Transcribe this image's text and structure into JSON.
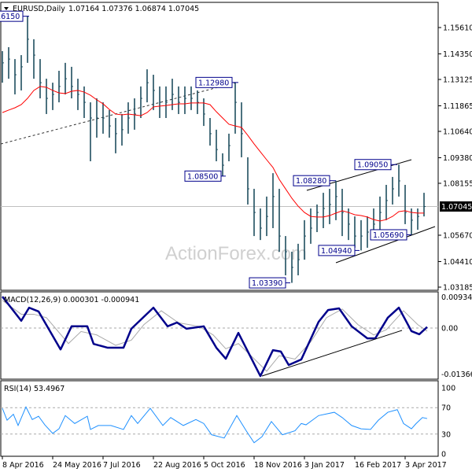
{
  "header": {
    "symbol_timeframe": "EURUSD,Daily",
    "ohlc": "1.07164 1.07376 1.06874 1.07045"
  },
  "watermark": "ActionForex.com",
  "colors": {
    "bars": "#1f4e5f",
    "ma": "#ff0000",
    "macd": "#00008b",
    "signal": "#a9a9a9",
    "rsi": "#1e90ff",
    "label_border": "#00008b",
    "label_text": "#00008b"
  },
  "chart_data": [
    {
      "type": "ohlc-bar",
      "title": "EURUSD,Daily",
      "x_unit": "trading days from 8 Apr 2016 (one sample every 4 days)",
      "x_tick_labels": [
        {
          "day": 0,
          "label": "8 Apr 2016"
        },
        {
          "day": 32,
          "label": "24 May 2016"
        },
        {
          "day": 64,
          "label": "7 Jul 2016"
        },
        {
          "day": 96,
          "label": "22 Aug 2016"
        },
        {
          "day": 128,
          "label": "5 Oct 2016"
        },
        {
          "day": 160,
          "label": "18 Nov 2016"
        },
        {
          "day": 192,
          "label": "3 Jan 2017"
        },
        {
          "day": 224,
          "label": "16 Feb 2017"
        },
        {
          "day": 256,
          "label": "3 Apr 2017"
        }
      ],
      "y_tick_labels": [
        "1.15610",
        "1.14350",
        "1.13125",
        "1.11865",
        "1.10640",
        "1.09380",
        "1.08155",
        "1.05670",
        "1.04410",
        "1.03185"
      ],
      "current_price": "1.07045",
      "high": [
        1.1448,
        1.1467,
        1.141,
        1.1429,
        1.1617,
        1.1505,
        1.141,
        1.1316,
        1.1297,
        1.1354,
        1.1392,
        1.1373,
        1.1316,
        1.1279,
        1.1203,
        1.1222,
        1.1203,
        1.1166,
        1.1128,
        1.1147,
        1.1203,
        1.1222,
        1.1279,
        1.1361,
        1.1335,
        1.1279,
        1.1279,
        1.1316,
        1.1279,
        1.1279,
        1.1279,
        1.126,
        1.1222,
        1.1128,
        1.1072,
        1.0959,
        1.1053,
        1.1298,
        1.1203,
        1.094,
        1.0789,
        1.0695,
        1.0752,
        1.0864,
        1.0789,
        1.0563,
        1.0488,
        1.0526,
        1.0639,
        1.0695,
        1.0714,
        1.077,
        1.0789,
        1.0828,
        1.0789,
        1.0695,
        1.0657,
        1.0639,
        1.0657,
        1.0695,
        1.0752,
        1.0808,
        1.0846,
        1.0905,
        1.0808,
        1.0695,
        1.0695,
        1.077
      ],
      "low": [
        1.1297,
        1.1316,
        1.1241,
        1.126,
        1.1392,
        1.1316,
        1.1222,
        1.1147,
        1.1166,
        1.1203,
        1.1241,
        1.1222,
        1.1166,
        1.1128,
        1.0921,
        1.1034,
        1.1053,
        1.1034,
        1.0959,
        1.0996,
        1.1053,
        1.1072,
        1.1128,
        1.1203,
        1.1166,
        1.1128,
        1.1128,
        1.1166,
        1.1147,
        1.1147,
        1.1166,
        1.1147,
        1.109,
        1.0996,
        1.0921,
        1.085,
        1.0921,
        1.1053,
        1.094,
        1.0714,
        1.0563,
        1.0544,
        1.0563,
        1.0601,
        1.0488,
        1.0375,
        1.0339,
        1.0375,
        1.045,
        1.0526,
        1.0582,
        1.0601,
        1.062,
        1.0639,
        1.0563,
        1.0544,
        1.0507,
        1.0494,
        1.0507,
        1.0563,
        1.0582,
        1.0639,
        1.0714,
        1.0752,
        1.062,
        1.0569,
        1.0593,
        1.0657
      ],
      "close": [
        1.1392,
        1.141,
        1.1335,
        1.1373,
        1.1505,
        1.1429,
        1.1297,
        1.1222,
        1.1241,
        1.1279,
        1.1316,
        1.1279,
        1.1241,
        1.1203,
        1.1128,
        1.1128,
        1.1128,
        1.109,
        1.1053,
        1.1072,
        1.1128,
        1.1147,
        1.1222,
        1.1297,
        1.126,
        1.1203,
        1.1203,
        1.1241,
        1.1203,
        1.1222,
        1.1222,
        1.1203,
        1.1147,
        1.1053,
        1.0977,
        1.0902,
        1.0996,
        1.1203,
        1.1053,
        1.0789,
        1.0676,
        1.0601,
        1.0657,
        1.0752,
        1.0563,
        1.0488,
        1.0413,
        1.045,
        1.0563,
        1.0601,
        1.0676,
        1.0695,
        1.0714,
        1.0752,
        1.0676,
        1.062,
        1.0563,
        1.0563,
        1.0582,
        1.062,
        1.0676,
        1.0733,
        1.0789,
        1.0827,
        1.0676,
        1.0639,
        1.0657,
        1.07045
      ],
      "ma": [
        1.1154,
        1.1166,
        1.1177,
        1.1192,
        1.1222,
        1.126,
        1.1279,
        1.1275,
        1.126,
        1.1248,
        1.1245,
        1.1256,
        1.126,
        1.1252,
        1.1237,
        1.1215,
        1.1196,
        1.1169,
        1.1147,
        1.1143,
        1.1147,
        1.1143,
        1.1139,
        1.1154,
        1.1181,
        1.1185,
        1.1188,
        1.1192,
        1.1196,
        1.1196,
        1.12,
        1.12,
        1.12,
        1.1192,
        1.1158,
        1.1128,
        1.1098,
        1.109,
        1.1083,
        1.1045,
        1.1004,
        1.0966,
        1.0928,
        1.0891,
        1.0834,
        1.0789,
        1.0744,
        1.0706,
        1.0676,
        1.0657,
        1.0654,
        1.0654,
        1.0661,
        1.0673,
        1.0684,
        1.0676,
        1.0665,
        1.0661,
        1.0654,
        1.0642,
        1.0635,
        1.0642,
        1.0657,
        1.068,
        1.0684,
        1.0676,
        1.0673,
        1.0673
      ],
      "annotations": [
        {
          "day": 17,
          "price": 1.1615,
          "label": "1.16150"
        },
        {
          "day": 150,
          "price": 1.1298,
          "label": "1.12980"
        },
        {
          "day": 142,
          "price": 1.085,
          "label": "1.08500"
        },
        {
          "day": 183,
          "price": 1.0339,
          "label": "1.03390"
        },
        {
          "day": 212,
          "price": 1.0828,
          "label": "1.08280"
        },
        {
          "day": 251,
          "price": 1.0905,
          "label": "1.09050"
        },
        {
          "day": 227,
          "price": 1.0494,
          "label": "1.04940"
        },
        {
          "day": 260,
          "price": 1.0569,
          "label": "1.05690"
        }
      ]
    },
    {
      "type": "line",
      "title": "MACD(12,26,9) 0.000301 -0.000941",
      "y_tick_labels": [
        "0.009345",
        "0.00",
        "-0.013663"
      ],
      "ylim": [
        -0.013663,
        0.009345
      ],
      "macd": [
        [
          0,
          0.0091
        ],
        [
          12,
          0.0021
        ],
        [
          17,
          0.0059
        ],
        [
          23,
          0.0048
        ],
        [
          37,
          -0.0062
        ],
        [
          44,
          0.0005
        ],
        [
          54,
          0.0005
        ],
        [
          58,
          -0.0046
        ],
        [
          67,
          -0.0057
        ],
        [
          77,
          -0.0057
        ],
        [
          82,
          -0.0002
        ],
        [
          96,
          0.0059
        ],
        [
          105,
          0.0005
        ],
        [
          111,
          0.0016
        ],
        [
          117,
          -0.0002
        ],
        [
          128,
          0.0005
        ],
        [
          136,
          -0.0057
        ],
        [
          142,
          -0.0089
        ],
        [
          150,
          -0.0014
        ],
        [
          164,
          -0.0139
        ],
        [
          172,
          -0.0064
        ],
        [
          177,
          -0.0068
        ],
        [
          182,
          -0.0107
        ],
        [
          190,
          -0.0091
        ],
        [
          201,
          0.0018
        ],
        [
          207,
          0.0052
        ],
        [
          214,
          0.0057
        ],
        [
          222,
          0.0005
        ],
        [
          232,
          -0.003
        ],
        [
          237,
          -0.003
        ],
        [
          245,
          0.003
        ],
        [
          252,
          0.0059
        ],
        [
          260,
          -0.0009
        ],
        [
          265,
          -0.0018
        ],
        [
          270,
          0.0003
        ]
      ],
      "signal": [
        [
          0,
          0.008
        ],
        [
          12,
          0.004
        ],
        [
          20,
          0.004
        ],
        [
          28,
          0.003
        ],
        [
          42,
          -0.0045
        ],
        [
          50,
          -0.001
        ],
        [
          60,
          -0.002
        ],
        [
          72,
          -0.005
        ],
        [
          82,
          -0.0035
        ],
        [
          90,
          0.001
        ],
        [
          101,
          0.005
        ],
        [
          112,
          0.0015
        ],
        [
          125,
          0.0005
        ],
        [
          134,
          -0.002
        ],
        [
          142,
          -0.006
        ],
        [
          150,
          -0.0045
        ],
        [
          158,
          -0.008
        ],
        [
          168,
          -0.0125
        ],
        [
          176,
          -0.008
        ],
        [
          186,
          -0.009
        ],
        [
          196,
          -0.004
        ],
        [
          206,
          0.003
        ],
        [
          216,
          0.0055
        ],
        [
          226,
          0.001
        ],
        [
          236,
          -0.002
        ],
        [
          244,
          -0.0005
        ],
        [
          255,
          0.005
        ],
        [
          264,
          0.001
        ],
        [
          270,
          -0.0009
        ]
      ]
    },
    {
      "type": "line",
      "title": "RSI(14) 53.4967",
      "y_tick_labels": [
        "100",
        "70",
        "30",
        "0"
      ],
      "ylim": [
        0,
        100
      ],
      "levels": [
        70,
        30
      ],
      "rsi": [
        [
          0,
          69
        ],
        [
          3,
          51
        ],
        [
          7,
          60
        ],
        [
          10,
          43
        ],
        [
          15,
          71
        ],
        [
          19,
          52
        ],
        [
          23,
          57
        ],
        [
          27,
          44
        ],
        [
          32,
          31
        ],
        [
          36,
          38
        ],
        [
          40,
          58
        ],
        [
          46,
          46
        ],
        [
          54,
          57
        ],
        [
          56,
          37
        ],
        [
          61,
          43
        ],
        [
          69,
          43
        ],
        [
          77,
          37
        ],
        [
          82,
          58
        ],
        [
          86,
          46
        ],
        [
          94,
          69
        ],
        [
          102,
          43
        ],
        [
          107,
          55
        ],
        [
          115,
          43
        ],
        [
          123,
          52
        ],
        [
          128,
          46
        ],
        [
          133,
          29
        ],
        [
          141,
          24
        ],
        [
          149,
          58
        ],
        [
          155,
          35
        ],
        [
          160,
          17
        ],
        [
          165,
          26
        ],
        [
          171,
          49
        ],
        [
          178,
          29
        ],
        [
          186,
          35
        ],
        [
          190,
          46
        ],
        [
          193,
          44
        ],
        [
          201,
          58
        ],
        [
          211,
          63
        ],
        [
          216,
          55
        ],
        [
          222,
          43
        ],
        [
          228,
          38
        ],
        [
          234,
          37
        ],
        [
          239,
          51
        ],
        [
          245,
          63
        ],
        [
          251,
          67
        ],
        [
          255,
          46
        ],
        [
          260,
          38
        ],
        [
          263,
          46
        ],
        [
          267,
          55
        ],
        [
          270,
          53.5
        ]
      ]
    }
  ]
}
